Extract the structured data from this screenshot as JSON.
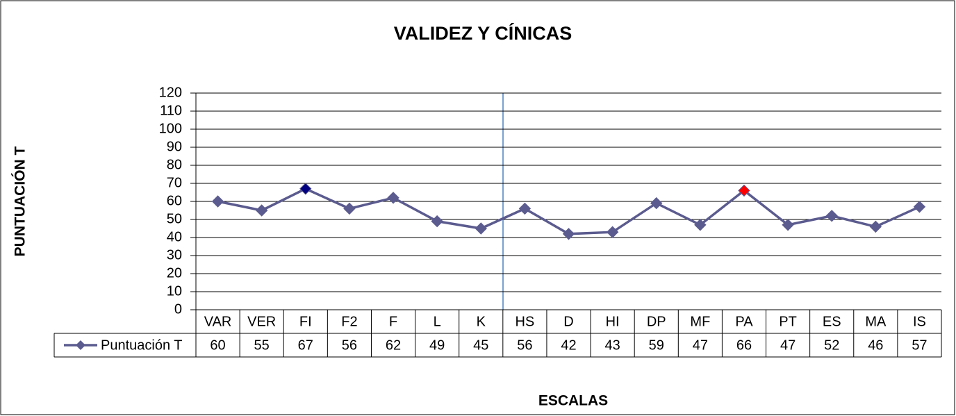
{
  "chart_data": {
    "type": "line",
    "title": "VALIDEZ Y CÍNICAS",
    "x_label": "ESCALAS",
    "y_label": "PUNTUACIÓN T",
    "categories": [
      "VAR",
      "VER",
      "FI",
      "F2",
      "F",
      "L",
      "K",
      "HS",
      "D",
      "HI",
      "DP",
      "MF",
      "PA",
      "PT",
      "ES",
      "MA",
      "IS"
    ],
    "series": [
      {
        "name": "Puntuación T",
        "color": "#5b5b8f",
        "values": [
          60,
          55,
          67,
          56,
          62,
          49,
          45,
          56,
          42,
          43,
          59,
          47,
          66,
          47,
          52,
          46,
          57
        ],
        "marker_colors": [
          "#5b5b8f",
          "#5b5b8f",
          "#000080",
          "#5b5b8f",
          "#5b5b8f",
          "#5b5b8f",
          "#5b5b8f",
          "#5b5b8f",
          "#5b5b8f",
          "#5b5b8f",
          "#5b5b8f",
          "#5b5b8f",
          "#ff0000",
          "#5b5b8f",
          "#5b5b8f",
          "#5b5b8f",
          "#5b5b8f"
        ]
      }
    ],
    "ylim": [
      0,
      120
    ],
    "yticks": [
      0,
      10,
      20,
      30,
      40,
      50,
      60,
      70,
      80,
      90,
      100,
      110,
      120
    ],
    "grid": true,
    "data_table": true
  }
}
